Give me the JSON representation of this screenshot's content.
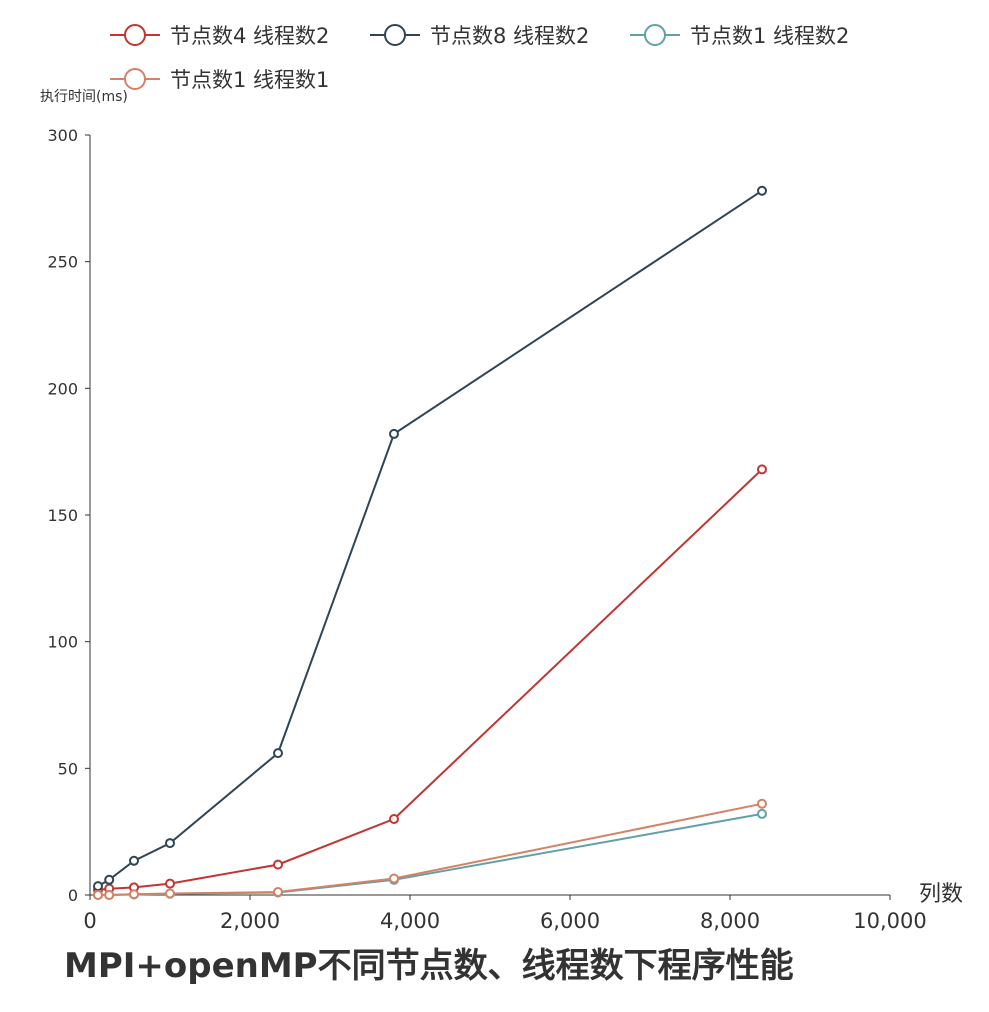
{
  "chart_data": {
    "type": "line",
    "title": "MPI+openMP不同节点数、线程数下程序性能",
    "xlabel": "列数",
    "ylabel": "执行时间(ms)",
    "xlim": [
      0,
      10000
    ],
    "ylim": [
      0,
      300
    ],
    "x_ticks": [
      "0",
      "2,000",
      "4,000",
      "6,000",
      "8,000",
      "10,000"
    ],
    "y_ticks": [
      "0",
      "50",
      "100",
      "150",
      "200",
      "250",
      "300"
    ],
    "grid": false,
    "legend_position": "top-left",
    "series": [
      {
        "name": "节点数4 线程数2",
        "color": "#c23531",
        "x": [
          100,
          240,
          550,
          1000,
          2350,
          3800,
          8400
        ],
        "values": [
          2,
          2.5,
          3,
          4.5,
          12,
          30,
          168
        ]
      },
      {
        "name": "节点数8 线程数2",
        "color": "#2f4554",
        "x": [
          100,
          240,
          550,
          1000,
          2350,
          3800,
          8400
        ],
        "values": [
          3.5,
          6,
          13.5,
          20.5,
          56,
          182,
          278
        ]
      },
      {
        "name": "节点数1 线程数2",
        "color": "#61a0a8",
        "x": [
          100,
          240,
          550,
          1000,
          2350,
          3800,
          8400
        ],
        "values": [
          0,
          0,
          0.2,
          0.5,
          1,
          6,
          32
        ]
      },
      {
        "name": "节点数1 线程数1",
        "color": "#d48265",
        "x": [
          100,
          240,
          550,
          1000,
          2350,
          3800,
          8400
        ],
        "values": [
          0,
          0,
          0.3,
          0.6,
          1.2,
          6.5,
          36
        ]
      }
    ]
  }
}
